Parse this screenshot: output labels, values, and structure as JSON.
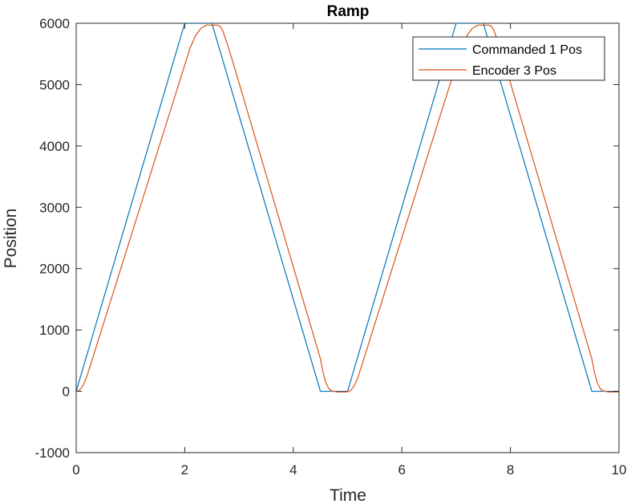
{
  "chart_data": {
    "type": "line",
    "title": "Ramp",
    "xlabel": "Time",
    "ylabel": "Position",
    "xlim": [
      0,
      10
    ],
    "ylim": [
      -1000,
      6000
    ],
    "xticks": [
      0,
      2,
      4,
      6,
      8,
      10
    ],
    "xtick_labels": [
      "0",
      "2",
      "4",
      "6",
      "8",
      "10"
    ],
    "yticks": [
      -1000,
      0,
      1000,
      2000,
      3000,
      4000,
      5000,
      6000
    ],
    "ytick_labels": [
      "-1000",
      "0",
      "1000",
      "2000",
      "3000",
      "4000",
      "5000",
      "6000"
    ],
    "grid": false,
    "legend_location": "top-right",
    "series": [
      {
        "name": "Commanded 1 Pos",
        "color": "#0072BD",
        "x": [
          0,
          2.0,
          2.5,
          4.5,
          5.0,
          7.0,
          7.5,
          9.5,
          10.0
        ],
        "y": [
          0,
          6000,
          6000,
          0,
          0,
          6000,
          6000,
          0,
          0
        ]
      },
      {
        "name": "Encoder 3 Pos",
        "color": "#D95319",
        "x": [
          0,
          0.05,
          0.1,
          0.15,
          0.2,
          0.3,
          2.0,
          2.1,
          2.2,
          2.3,
          2.4,
          2.6,
          2.65,
          2.7,
          2.8,
          2.9,
          4.5,
          4.55,
          4.6,
          4.65,
          4.7,
          4.8,
          5.0,
          5.05,
          5.1,
          5.15,
          5.2,
          5.3,
          7.0,
          7.1,
          7.2,
          7.3,
          7.4,
          7.6,
          7.65,
          7.7,
          7.8,
          7.9,
          9.5,
          9.55,
          9.6,
          9.65,
          9.7,
          9.8,
          10.0
        ],
        "y": [
          0,
          10,
          60,
          140,
          250,
          530,
          5320,
          5600,
          5800,
          5920,
          5970,
          5970,
          5950,
          5880,
          5620,
          5330,
          530,
          300,
          140,
          50,
          10,
          -10,
          -10,
          10,
          60,
          140,
          250,
          530,
          5320,
          5600,
          5800,
          5920,
          5970,
          5970,
          5950,
          5880,
          5620,
          5330,
          530,
          300,
          140,
          50,
          10,
          -10,
          -10
        ]
      }
    ]
  }
}
